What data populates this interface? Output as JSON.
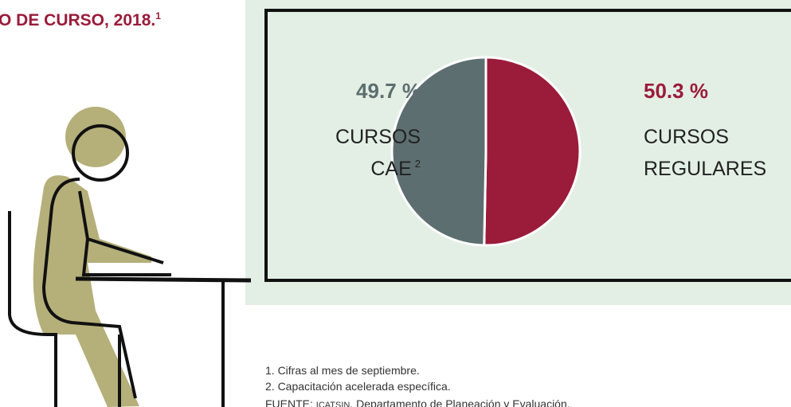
{
  "title": "O DE CURSO, 2018.",
  "title_note": "1",
  "chart_data": {
    "type": "pie",
    "categories": [
      [
        "CURSOS",
        "REGULARES"
      ],
      [
        "CURSOS",
        "CAE"
      ]
    ],
    "category_notes": [
      null,
      "2"
    ],
    "values": [
      50.3,
      49.7
    ],
    "value_labels": [
      "50.3 %",
      "49.7 %"
    ],
    "colors": [
      "#9b1b3a",
      "#5d6e70"
    ]
  },
  "notes": [
    "1. Cifras al mes de septiembre.",
    "2. Capacitación acelerada específica."
  ],
  "source": {
    "label": "FUENTE:",
    "org": "ICATSIN",
    "text": ", Departamento de Planeación y Evaluación."
  }
}
